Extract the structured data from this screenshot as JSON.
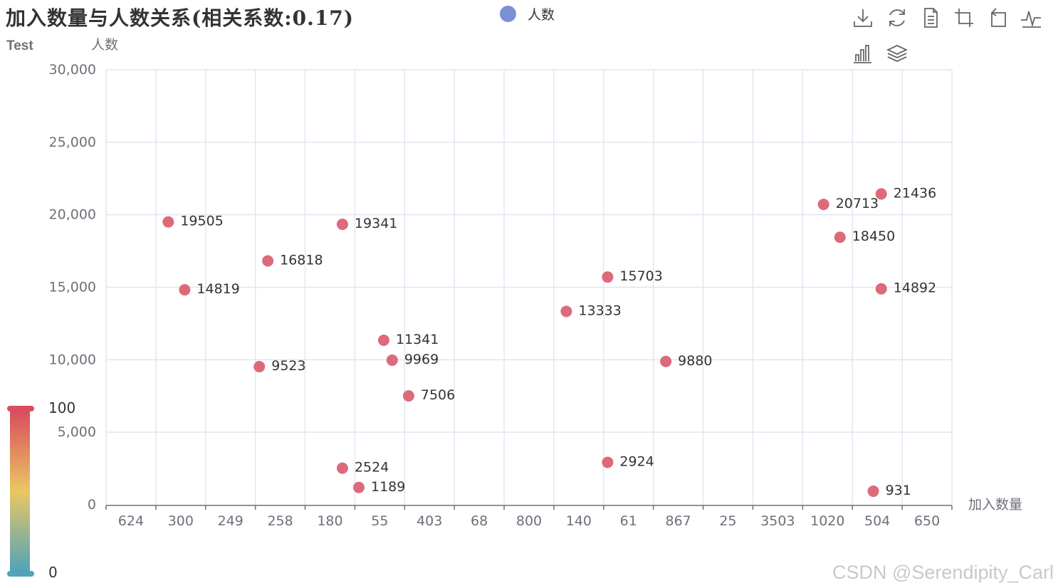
{
  "chart_data": {
    "type": "scatter",
    "title": "加入数量与人数关系(相关系数:0.17)",
    "subtitle": "Test",
    "xlabel": "加入数量",
    "ylabel": "人数",
    "x_axis_type": "category",
    "categories": [
      "624",
      "300",
      "249",
      "258",
      "180",
      "55",
      "403",
      "68",
      "800",
      "140",
      "61",
      "867",
      "25",
      "3503",
      "1020",
      "504",
      "650"
    ],
    "ylim": [
      0,
      30000
    ],
    "y_ticks": [
      "30,000",
      "25,000",
      "20,000",
      "15,000",
      "10,000",
      "5,000",
      "0"
    ],
    "grid": true,
    "legend_position": "top-center",
    "series": [
      {
        "name": "人数",
        "legend_color": "#7b90d4",
        "point_color": "#dd6a7a",
        "points": [
          {
            "x": 0.75,
            "y": 19505,
            "label": "19505"
          },
          {
            "x": 1.08,
            "y": 14819,
            "label": "14819"
          },
          {
            "x": 2.75,
            "y": 16818,
            "label": "16818"
          },
          {
            "x": 2.58,
            "y": 9523,
            "label": "9523"
          },
          {
            "x": 4.25,
            "y": 19341,
            "label": "19341"
          },
          {
            "x": 4.25,
            "y": 2524,
            "label": "2524"
          },
          {
            "x": 4.58,
            "y": 1189,
            "label": "1189"
          },
          {
            "x": 5.08,
            "y": 11341,
            "label": "11341"
          },
          {
            "x": 5.25,
            "y": 9969,
            "label": "9969"
          },
          {
            "x": 5.58,
            "y": 7506,
            "label": "7506"
          },
          {
            "x": 8.75,
            "y": 13333,
            "label": "13333"
          },
          {
            "x": 9.58,
            "y": 15703,
            "label": "15703"
          },
          {
            "x": 9.58,
            "y": 2924,
            "label": "2924"
          },
          {
            "x": 10.75,
            "y": 9880,
            "label": "9880"
          },
          {
            "x": 13.92,
            "y": 20713,
            "label": "20713"
          },
          {
            "x": 14.25,
            "y": 18450,
            "label": "18450"
          },
          {
            "x": 15.08,
            "y": 21436,
            "label": "21436"
          },
          {
            "x": 15.08,
            "y": 14892,
            "label": "14892"
          },
          {
            "x": 14.92,
            "y": 931,
            "label": "931"
          }
        ]
      }
    ],
    "visual_map": {
      "min": 0,
      "max": 100,
      "min_label": "0",
      "max_label": "100",
      "colors": [
        "#d94e5d",
        "#eac763",
        "#50a3ba"
      ]
    }
  },
  "watermark": "CSDN @Serendipity_Carl"
}
